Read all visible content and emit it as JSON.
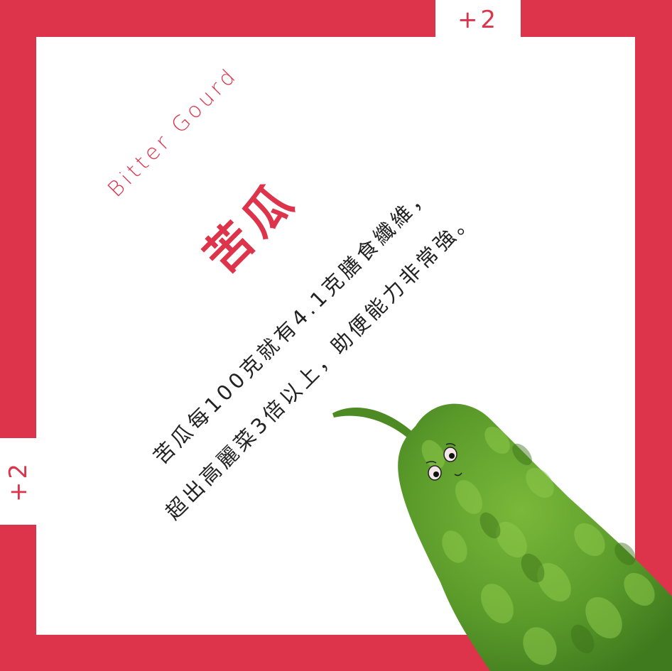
{
  "badges": {
    "top": "+2",
    "left": "+2"
  },
  "title": {
    "english": "Bitter Gourd",
    "chinese": "苦瓜"
  },
  "body": {
    "line1": "苦瓜每100克就有4.1克膳食纖維，",
    "line2": "超出高麗菜3倍以上，助便能力非常強。"
  },
  "colors": {
    "frame": "#dd344b",
    "background": "#ffffff",
    "text": "#222222",
    "gourd": "#5a9a2a"
  },
  "illustration": {
    "icon": "bitter-gourd-character-illustration"
  }
}
